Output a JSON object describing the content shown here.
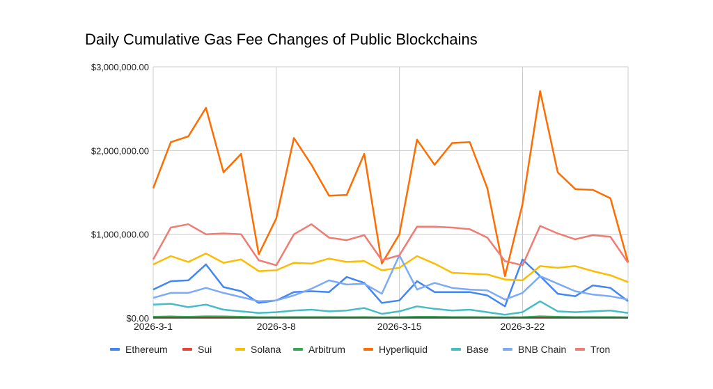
{
  "chart_data": {
    "type": "line",
    "title": "Daily Cumulative Gas Fee Changes of Public Blockchains",
    "xlabel": "",
    "ylabel": "",
    "x": [
      "2026-3-1",
      "2026-3-2",
      "2026-3-3",
      "2026-3-4",
      "2026-3-5",
      "2026-3-6",
      "2026-3-7",
      "2026-3-8",
      "2026-3-9",
      "2026-3-10",
      "2026-3-11",
      "2026-3-12",
      "2026-3-13",
      "2026-3-14",
      "2026-3-15",
      "2026-3-16",
      "2026-3-17",
      "2026-3-18",
      "2026-3-19",
      "2026-3-20",
      "2026-3-21",
      "2026-3-22",
      "2026-3-23",
      "2026-3-24",
      "2026-3-25",
      "2026-3-26",
      "2026-3-27",
      "2026-3-28"
    ],
    "x_tick_labels": [
      "2026-3-1",
      "2026-3-8",
      "2026-3-15",
      "2026-3-22"
    ],
    "y_tick_labels": [
      "$0.00",
      "$1,000,000.00",
      "$2,000,000.00",
      "$3,000,000.00"
    ],
    "ylim": [
      0,
      3000000
    ],
    "grid": true,
    "legend_position": "bottom",
    "series": [
      {
        "name": "Ethereum",
        "color": "#4285f4",
        "values": [
          340000,
          440000,
          450000,
          640000,
          370000,
          320000,
          180000,
          210000,
          310000,
          320000,
          310000,
          490000,
          420000,
          180000,
          210000,
          440000,
          310000,
          310000,
          310000,
          270000,
          140000,
          700000,
          500000,
          290000,
          260000,
          390000,
          360000,
          200000
        ]
      },
      {
        "name": "Sui",
        "color": "#ea4335",
        "values": [
          5000,
          5000,
          5000,
          5000,
          5000,
          5000,
          5000,
          5000,
          5000,
          5000,
          5000,
          5000,
          5000,
          5000,
          5000,
          5000,
          5000,
          5000,
          5000,
          5000,
          5000,
          5000,
          5000,
          5000,
          5000,
          5000,
          5000,
          5000
        ]
      },
      {
        "name": "Solana",
        "color": "#fbbc04",
        "values": [
          640000,
          740000,
          670000,
          770000,
          660000,
          700000,
          560000,
          570000,
          660000,
          650000,
          710000,
          670000,
          680000,
          570000,
          600000,
          740000,
          650000,
          540000,
          530000,
          520000,
          460000,
          450000,
          620000,
          600000,
          620000,
          560000,
          510000,
          430000
        ]
      },
      {
        "name": "Arbitrum",
        "color": "#34a853",
        "values": [
          15000,
          18000,
          15000,
          20000,
          18000,
          15000,
          10000,
          10000,
          12000,
          12000,
          12000,
          10000,
          12000,
          8000,
          10000,
          15000,
          14000,
          12000,
          12000,
          10000,
          8000,
          10000,
          20000,
          15000,
          12000,
          12000,
          12000,
          8000
        ]
      },
      {
        "name": "Hyperliquid",
        "color": "#ff6d01",
        "values": [
          1550000,
          2100000,
          2170000,
          2510000,
          1740000,
          1960000,
          760000,
          1190000,
          2150000,
          1830000,
          1460000,
          1470000,
          1960000,
          650000,
          1000000,
          2130000,
          1830000,
          2090000,
          2100000,
          1550000,
          500000,
          1360000,
          2710000,
          1740000,
          1540000,
          1530000,
          1430000,
          670000
        ]
      },
      {
        "name": "Base",
        "color": "#46bdc6",
        "values": [
          160000,
          170000,
          130000,
          160000,
          100000,
          80000,
          60000,
          70000,
          90000,
          100000,
          80000,
          90000,
          120000,
          50000,
          80000,
          140000,
          110000,
          90000,
          100000,
          70000,
          40000,
          70000,
          200000,
          80000,
          70000,
          80000,
          90000,
          60000
        ]
      },
      {
        "name": "BNB Chain",
        "color": "#7baaf7",
        "values": [
          240000,
          300000,
          300000,
          360000,
          300000,
          250000,
          200000,
          210000,
          270000,
          350000,
          450000,
          400000,
          410000,
          290000,
          750000,
          340000,
          420000,
          360000,
          340000,
          330000,
          220000,
          300000,
          500000,
          410000,
          320000,
          280000,
          260000,
          220000
        ]
      },
      {
        "name": "Tron",
        "color": "#f07b72",
        "values": [
          700000,
          1080000,
          1120000,
          1000000,
          1010000,
          1000000,
          690000,
          630000,
          1000000,
          1120000,
          960000,
          930000,
          990000,
          690000,
          750000,
          1090000,
          1090000,
          1080000,
          1060000,
          960000,
          680000,
          630000,
          1100000,
          1010000,
          940000,
          990000,
          970000,
          660000
        ]
      }
    ]
  }
}
